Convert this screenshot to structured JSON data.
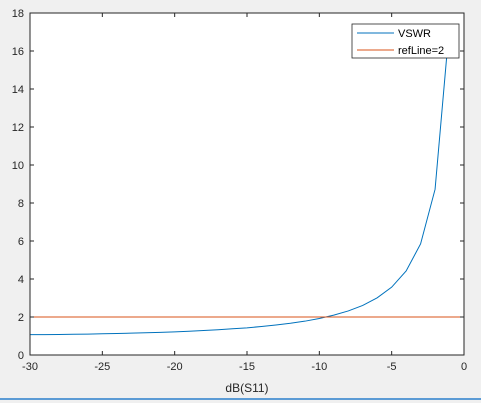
{
  "chart_data": {
    "type": "line",
    "title": "",
    "xlabel": "dB(S11)",
    "ylabel": "",
    "xlim": [
      -30,
      0
    ],
    "ylim": [
      0,
      18
    ],
    "xticks": [
      -30,
      -25,
      -20,
      -15,
      -10,
      -5,
      0
    ],
    "xtick_labels": [
      "-30",
      "-25",
      "-20",
      "-15",
      "-10",
      "-5",
      "0"
    ],
    "yticks": [
      0,
      2,
      4,
      6,
      8,
      10,
      12,
      14,
      16,
      18
    ],
    "ytick_labels": [
      "0",
      "2",
      "4",
      "6",
      "8",
      "10",
      "12",
      "14",
      "16",
      "18"
    ],
    "grid": false,
    "legend_position": "top-right",
    "series": [
      {
        "name": "VSWR",
        "color": "#0072bd",
        "x": [
          -30,
          -29,
          -28,
          -27,
          -26,
          -25,
          -24,
          -23,
          -22,
          -21,
          -20,
          -19,
          -18,
          -17,
          -16,
          -15,
          -14,
          -13,
          -12,
          -11,
          -10,
          -9,
          -8,
          -7,
          -6,
          -5,
          -4,
          -3,
          -2,
          -1
        ],
        "y": [
          1.07,
          1.07,
          1.08,
          1.09,
          1.1,
          1.12,
          1.13,
          1.15,
          1.17,
          1.19,
          1.22,
          1.25,
          1.29,
          1.33,
          1.38,
          1.43,
          1.5,
          1.58,
          1.67,
          1.78,
          1.92,
          2.1,
          2.32,
          2.61,
          3.01,
          3.57,
          4.42,
          5.85,
          8.72,
          17.39
        ]
      },
      {
        "name": "refLine=2",
        "color": "#d95319",
        "x": [
          -30,
          0
        ],
        "y": [
          2,
          2
        ]
      }
    ]
  }
}
